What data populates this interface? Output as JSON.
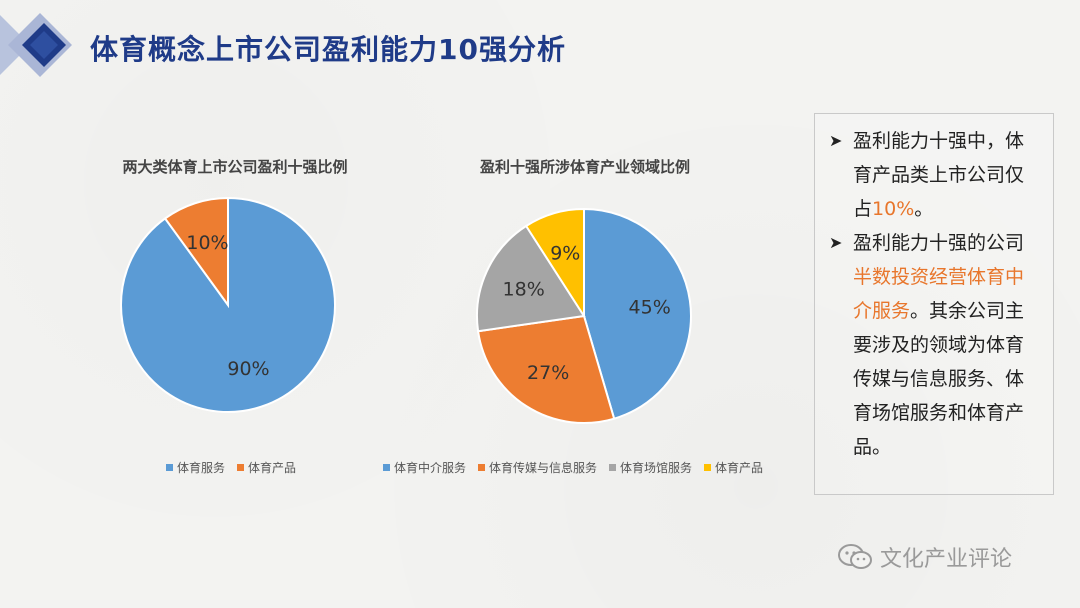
{
  "title": "体育概念上市公司盈利能力10强分析",
  "chart_data": [
    {
      "type": "pie",
      "title": "两大类体育上市公司盈利十强比例",
      "categories": [
        "体育服务",
        "体育产品"
      ],
      "values": [
        90,
        10
      ],
      "labels": [
        "90%",
        "10%"
      ],
      "colors": [
        "#5b9bd5",
        "#ed7d31"
      ],
      "legend": "bottom"
    },
    {
      "type": "pie",
      "title": "盈利十强所涉体育产业领域比例",
      "categories": [
        "体育中介服务",
        "体育传媒与信息服务",
        "体育场馆服务",
        "体育产品"
      ],
      "values": [
        45,
        27,
        18,
        9
      ],
      "labels": [
        "45%",
        "27%",
        "18%",
        "9%"
      ],
      "colors": [
        "#5b9bd5",
        "#ed7d31",
        "#a5a5a5",
        "#ffc000"
      ],
      "legend": "bottom"
    }
  ],
  "side_panel": {
    "bullet1": {
      "text_before": "盈利能力十强中，体育产品类上市公司仅占",
      "highlight": "10%",
      "text_after": "。"
    },
    "bullet2": {
      "text_before": "盈利能力十强的公司",
      "highlight": "半数投资经营体育中介服务",
      "text_after": "。其余公司主要涉及的领域为体育传媒与信息服务、体育场馆服务和体育产品。"
    },
    "arrow_icon": "arrow-right-icon",
    "highlight_color": "#e8762c"
  },
  "watermark": {
    "text": "文化产业评论",
    "icon": "wechat-icon"
  }
}
